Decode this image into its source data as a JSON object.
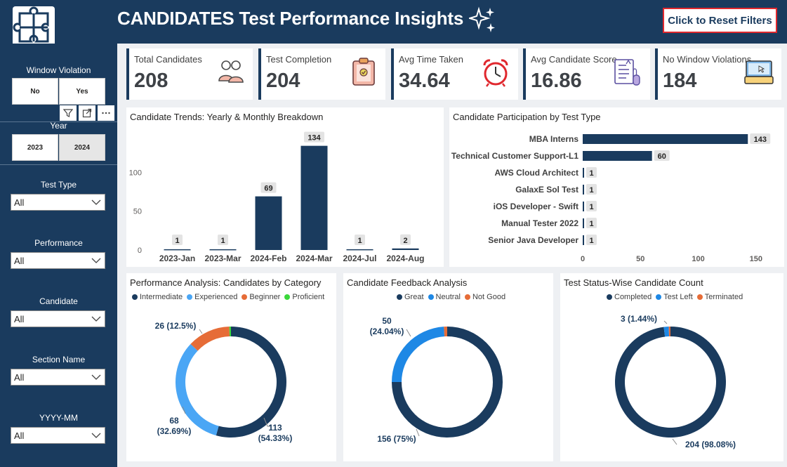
{
  "header": {
    "title": "CANDIDATES Test Performance Insights",
    "reset_button": "Click to Reset Filters"
  },
  "sidebar": {
    "window_violation": {
      "label": "Window Violation",
      "options": [
        "No",
        "Yes"
      ]
    },
    "year": {
      "label": "Year",
      "options": [
        "2023",
        "2024"
      ],
      "selected": "2024"
    },
    "filters": [
      {
        "label": "Test Type",
        "value": "All"
      },
      {
        "label": "Performance",
        "value": "All"
      },
      {
        "label": "Candidate",
        "value": "All"
      },
      {
        "label": "Section Name",
        "value": "All"
      },
      {
        "label": "YYYY-MM",
        "value": "All"
      }
    ]
  },
  "kpis": [
    {
      "label": "Total Candidates",
      "value": "208",
      "icon": "people-icon"
    },
    {
      "label": "Test Completion",
      "value": "204",
      "icon": "clipboard-icon"
    },
    {
      "label": "Avg Time Taken",
      "value": "34.64",
      "icon": "alarm-clock-icon"
    },
    {
      "label": "Avg Candidate Score",
      "value": "16.86",
      "icon": "test-paper-icon"
    },
    {
      "label": "No Window Violations",
      "value": "184",
      "icon": "laptop-icon"
    }
  ],
  "colors": {
    "navy": "#1a3b5e",
    "light_blue": "#4aa6f5",
    "blue": "#1e88e5",
    "orange": "#e66c37",
    "green": "#3bd83b",
    "red_border": "#e0282e"
  },
  "chart_data": [
    {
      "type": "bar",
      "title": "Candidate Trends: Yearly & Monthly Breakdown",
      "categories": [
        "2023-Jan",
        "2023-Mar",
        "2024-Feb",
        "2024-Mar",
        "2024-Jul",
        "2024-Aug"
      ],
      "values": [
        1,
        1,
        69,
        134,
        1,
        2
      ],
      "yticks": [
        0,
        50,
        100
      ],
      "ylim": [
        0,
        140
      ]
    },
    {
      "type": "bar",
      "orientation": "horizontal",
      "title": "Candidate Participation by Test Type",
      "categories": [
        "MBA Interns",
        "Technical Customer Support-L1",
        "AWS Cloud Architect",
        "GalaxE Sol Test",
        "iOS Developer - Swift",
        "Manual Tester 2022",
        "Senior Java Developer"
      ],
      "values": [
        143,
        60,
        1,
        1,
        1,
        1,
        1
      ],
      "xticks": [
        0,
        50,
        100,
        150
      ],
      "xlim": [
        0,
        155
      ]
    },
    {
      "type": "pie",
      "donut": true,
      "title": "Performance Analysis: Candidates by Category",
      "legend": [
        "Intermediate",
        "Experienced",
        "Beginner",
        "Proficient"
      ],
      "values": [
        113,
        68,
        26,
        1
      ],
      "labels": [
        [
          "113",
          "(54.33%)"
        ],
        [
          "68",
          "(32.69%)"
        ],
        [
          "26 (12.5%)"
        ],
        []
      ],
      "colors": [
        "#1a3b5e",
        "#4aa6f5",
        "#e66c37",
        "#3bd83b"
      ]
    },
    {
      "type": "pie",
      "donut": true,
      "title": "Candidate Feedback Analysis",
      "legend": [
        "Great",
        "Neutral",
        "Not Good"
      ],
      "values": [
        156,
        50,
        2
      ],
      "labels": [
        [
          "156 (75%)"
        ],
        [
          "50",
          "(24.04%)"
        ],
        []
      ],
      "colors": [
        "#1a3b5e",
        "#1e88e5",
        "#e66c37"
      ]
    },
    {
      "type": "pie",
      "donut": true,
      "title": "Test Status-Wise Candidate Count",
      "legend": [
        "Completed",
        "Test Left",
        "Terminated"
      ],
      "values": [
        204,
        3,
        1
      ],
      "labels": [
        [
          "204 (98.08%)"
        ],
        [
          "3 (1.44%)"
        ],
        []
      ],
      "colors": [
        "#1a3b5e",
        "#1e88e5",
        "#e66c37"
      ]
    }
  ]
}
